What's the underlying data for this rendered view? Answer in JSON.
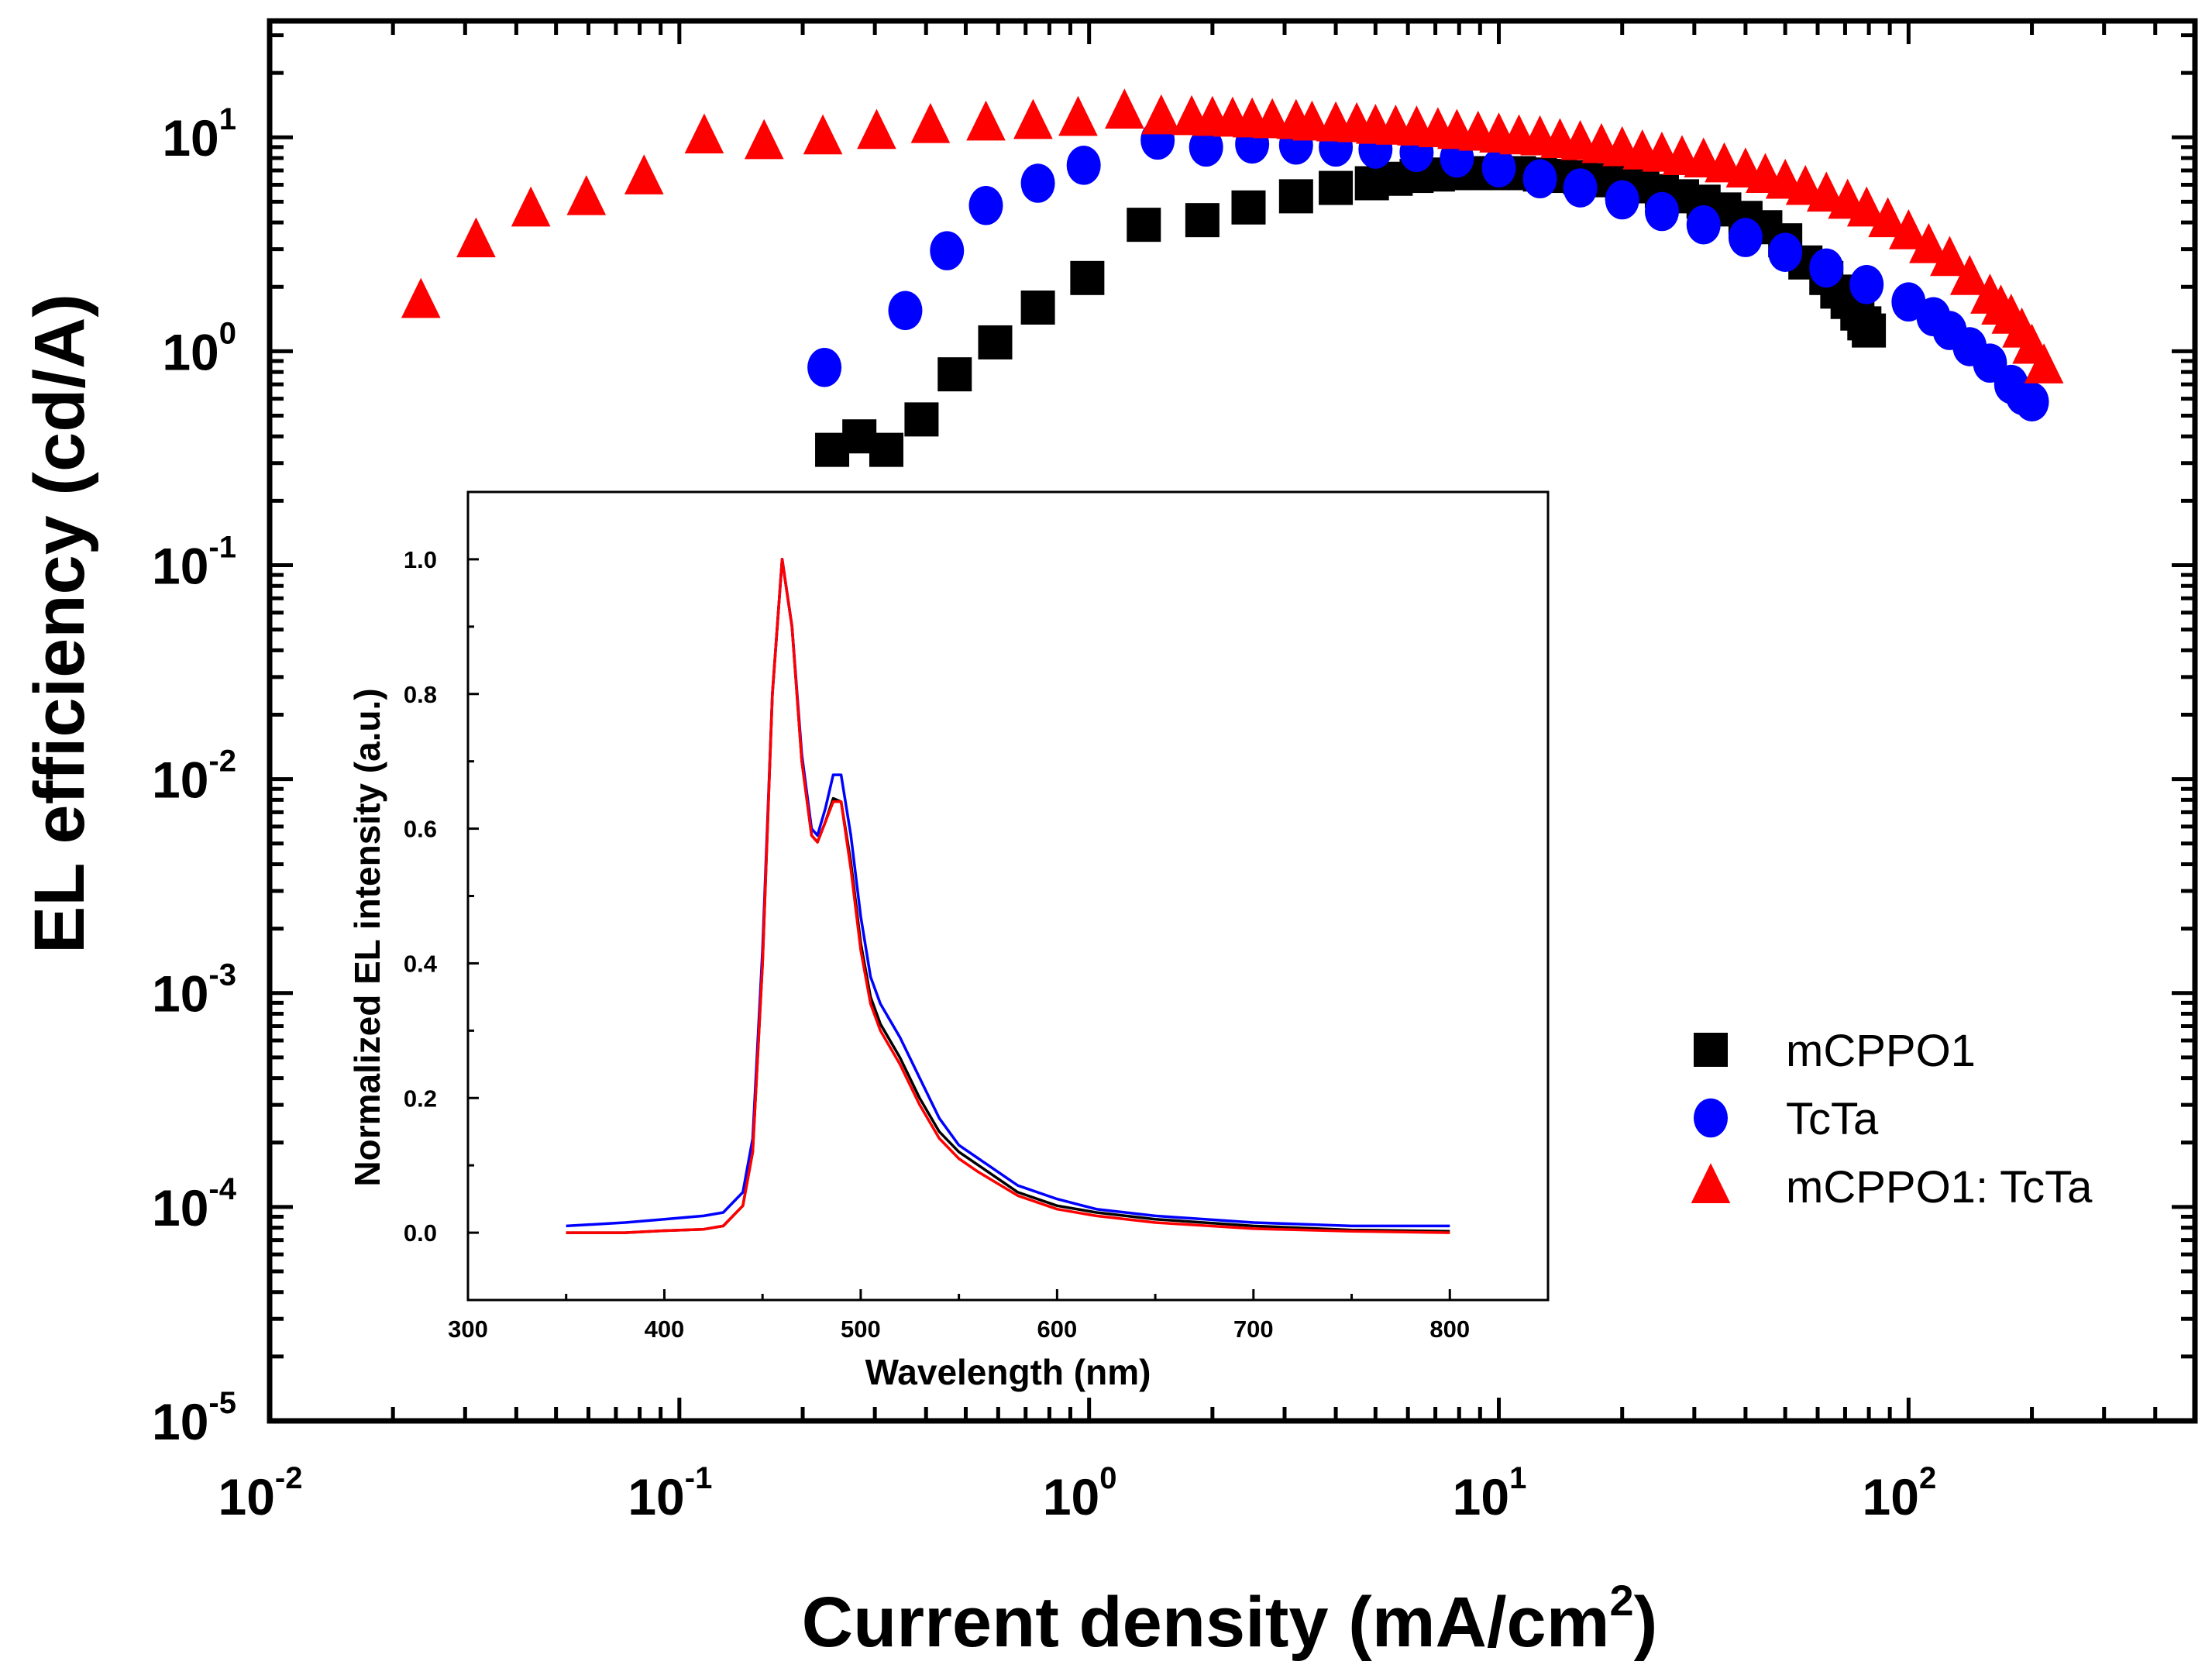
{
  "chart_data": [
    {
      "type": "scatter",
      "title": "",
      "xlabel": "Current density (mA/cm",
      "xlabel_sup": "2",
      "xlabel_end": ")",
      "ylabel": "EL efficiency (cd/A)",
      "xscale": "log",
      "yscale": "log",
      "xlim": [
        0.01,
        500
      ],
      "ylim": [
        1e-05,
        35
      ],
      "xticks": [
        {
          "base": "10",
          "exp": "-2",
          "value": 0.01
        },
        {
          "base": "10",
          "exp": "-1",
          "value": 0.1
        },
        {
          "base": "10",
          "exp": "0",
          "value": 1
        },
        {
          "base": "10",
          "exp": "1",
          "value": 10
        },
        {
          "base": "10",
          "exp": "2",
          "value": 100
        }
      ],
      "yticks": [
        {
          "base": "10",
          "exp": "1",
          "value": 10
        },
        {
          "base": "10",
          "exp": "0",
          "value": 1
        },
        {
          "base": "10",
          "exp": "-1",
          "value": 0.1
        },
        {
          "base": "10",
          "exp": "-2",
          "value": 0.01
        },
        {
          "base": "10",
          "exp": "-3",
          "value": 0.001
        },
        {
          "base": "10",
          "exp": "-4",
          "value": 0.0001
        },
        {
          "base": "10",
          "exp": "-5",
          "value": 1e-05
        }
      ],
      "legend_position": "bottom-right",
      "series": [
        {
          "name": "mCPPO1",
          "marker": "square",
          "color": "#000000",
          "x": [
            0.236,
            0.275,
            0.32,
            0.39,
            0.47,
            0.59,
            0.75,
            0.99,
            1.36,
            1.89,
            2.45,
            3.2,
            4.0,
            4.9,
            5.6,
            6.3,
            7.1,
            7.9,
            8.9,
            10,
            11.2,
            12.6,
            14.1,
            15.8,
            17.8,
            20,
            22.4,
            25,
            28,
            31.6,
            35.5,
            40,
            44.7,
            50,
            56,
            63,
            67,
            71,
            75,
            78,
            80
          ],
          "y": [
            0.346,
            0.4,
            0.346,
            0.48,
            0.78,
            1.1,
            1.6,
            2.2,
            3.9,
            4.1,
            4.7,
            5.3,
            5.8,
            6.1,
            6.4,
            6.6,
            6.7,
            6.8,
            6.8,
            6.8,
            6.8,
            6.7,
            6.6,
            6.5,
            6.3,
            6.1,
            5.9,
            5.6,
            5.3,
            5.0,
            4.6,
            4.2,
            3.8,
            3.3,
            2.6,
            2.2,
            1.9,
            1.7,
            1.5,
            1.35,
            1.25
          ]
        },
        {
          "name": "TcTa",
          "marker": "circle",
          "color": "#0000FF",
          "x": [
            0.226,
            0.356,
            0.45,
            0.56,
            0.75,
            0.97,
            1.47,
            1.93,
            2.5,
            3.2,
            4.0,
            5.0,
            6.3,
            7.9,
            10,
            12.6,
            15.8,
            20,
            25,
            31.6,
            40,
            50,
            63,
            79,
            100,
            115,
            126,
            141,
            158,
            178,
            190,
            200
          ],
          "y": [
            0.84,
            1.55,
            2.95,
            4.8,
            6.1,
            7.4,
            9.7,
            9.0,
            9.3,
            9.2,
            9.0,
            8.8,
            8.5,
            8.0,
            7.2,
            6.4,
            5.8,
            5.1,
            4.5,
            3.9,
            3.4,
            2.9,
            2.45,
            2.05,
            1.7,
            1.45,
            1.25,
            1.05,
            0.88,
            0.7,
            0.62,
            0.58
          ]
        },
        {
          "name": "mCPPO1: TcTa",
          "marker": "triangle",
          "color": "#FF0000",
          "x": [
            0.0234,
            0.0319,
            0.0434,
            0.0593,
            0.082,
            0.115,
            0.161,
            0.224,
            0.303,
            0.41,
            0.56,
            0.73,
            0.94,
            1.22,
            1.5,
            1.78,
            2,
            2.24,
            2.5,
            2.8,
            3.2,
            3.5,
            4,
            4.5,
            5,
            5.6,
            6.3,
            7.1,
            7.9,
            8.9,
            10,
            11.2,
            12.6,
            14.1,
            15.8,
            17.8,
            20,
            22.4,
            25,
            28,
            31.6,
            35.5,
            40,
            44.7,
            50,
            56,
            63,
            71,
            79,
            89,
            100,
            112,
            126,
            141,
            158,
            168,
            178,
            189,
            200,
            214
          ],
          "y": [
            1.72,
            3.3,
            4.6,
            5.2,
            6.5,
            10.1,
            9.5,
            10.0,
            10.6,
            11.3,
            11.6,
            11.8,
            12.2,
            13.2,
            12.4,
            12.3,
            12.2,
            12.1,
            12.0,
            11.9,
            11.8,
            11.6,
            11.5,
            11.4,
            11.2,
            11.1,
            11.0,
            10.8,
            10.6,
            10.4,
            10.2,
            10.0,
            9.9,
            9.6,
            9.4,
            9.1,
            8.8,
            8.5,
            8.3,
            8.0,
            7.8,
            7.4,
            7.0,
            6.6,
            6.2,
            5.8,
            5.4,
            5.0,
            4.6,
            4.1,
            3.6,
            3.1,
            2.7,
            2.2,
            1.8,
            1.6,
            1.45,
            1.25,
            1.05,
            0.85
          ]
        }
      ]
    },
    {
      "type": "line",
      "title": "",
      "xlabel": "Wavelength (nm)",
      "ylabel": "Normalized EL intensity (a.u.)",
      "xlim": [
        300,
        850
      ],
      "ylim": [
        -0.1,
        1.1
      ],
      "xticks": [
        300,
        400,
        500,
        600,
        700,
        800
      ],
      "xtick_labels": [
        "300",
        "400",
        "500",
        "600",
        "700",
        "800"
      ],
      "yticks": [
        0.0,
        0.2,
        0.4,
        0.6,
        0.8,
        1.0
      ],
      "ytick_labels": [
        "0.0",
        "0.2",
        "0.4",
        "0.6",
        "0.8",
        "1.0"
      ],
      "x": [
        350,
        380,
        400,
        420,
        430,
        440,
        445,
        450,
        455,
        460,
        465,
        470,
        475,
        478,
        482,
        486,
        490,
        495,
        500,
        505,
        510,
        520,
        530,
        540,
        550,
        560,
        580,
        600,
        620,
        650,
        700,
        750,
        800
      ],
      "series": [
        {
          "name": "mCPPO1",
          "color": "#000000",
          "values": [
            0,
            0,
            0.003,
            0.005,
            0.01,
            0.04,
            0.12,
            0.4,
            0.8,
            1.0,
            0.9,
            0.7,
            0.59,
            0.58,
            0.61,
            0.645,
            0.64,
            0.55,
            0.43,
            0.35,
            0.31,
            0.26,
            0.2,
            0.15,
            0.12,
            0.1,
            0.06,
            0.04,
            0.03,
            0.02,
            0.01,
            0.004,
            0.002
          ]
        },
        {
          "name": "TcTa",
          "color": "#0000FF",
          "values": [
            0.01,
            0.015,
            0.02,
            0.025,
            0.03,
            0.06,
            0.14,
            0.42,
            0.8,
            1.0,
            0.9,
            0.71,
            0.6,
            0.59,
            0.63,
            0.68,
            0.68,
            0.59,
            0.47,
            0.38,
            0.34,
            0.29,
            0.23,
            0.17,
            0.13,
            0.11,
            0.07,
            0.05,
            0.035,
            0.025,
            0.015,
            0.01,
            0.01
          ]
        },
        {
          "name": "mCPPO1: TcTa",
          "color": "#FF0000",
          "values": [
            0,
            0,
            0.003,
            0.005,
            0.01,
            0.04,
            0.12,
            0.4,
            0.8,
            1.0,
            0.9,
            0.7,
            0.59,
            0.58,
            0.61,
            0.64,
            0.64,
            0.54,
            0.42,
            0.34,
            0.3,
            0.25,
            0.19,
            0.14,
            0.11,
            0.09,
            0.055,
            0.035,
            0.025,
            0.015,
            0.006,
            0.002,
            0.0
          ]
        }
      ]
    }
  ]
}
